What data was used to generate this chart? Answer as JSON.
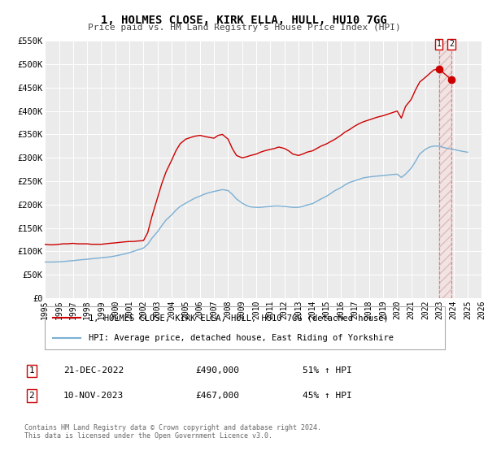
{
  "title": "1, HOLMES CLOSE, KIRK ELLA, HULL, HU10 7GG",
  "subtitle": "Price paid vs. HM Land Registry's House Price Index (HPI)",
  "legend_label1": "1, HOLMES CLOSE, KIRK ELLA, HULL, HU10 7GG (detached house)",
  "legend_label2": "HPI: Average price, detached house, East Riding of Yorkshire",
  "red_color": "#cc0000",
  "blue_color": "#7bafd4",
  "vline_color": "#e08080",
  "marker1_date": "21-DEC-2022",
  "marker1_price": "£490,000",
  "marker1_hpi": "51% ↑ HPI",
  "marker2_date": "10-NOV-2023",
  "marker2_price": "£467,000",
  "marker2_hpi": "45% ↑ HPI",
  "footer1": "Contains HM Land Registry data © Crown copyright and database right 2024.",
  "footer2": "This data is licensed under the Open Government Licence v3.0.",
  "xmin": 1995,
  "xmax": 2026,
  "ymin": 0,
  "ymax": 550000,
  "yticks": [
    0,
    50000,
    100000,
    150000,
    200000,
    250000,
    300000,
    350000,
    400000,
    450000,
    500000,
    550000
  ],
  "ytick_labels": [
    "£0",
    "£50K",
    "£100K",
    "£150K",
    "£200K",
    "£250K",
    "£300K",
    "£350K",
    "£400K",
    "£450K",
    "£500K",
    "£550K"
  ],
  "xticks": [
    1995,
    1996,
    1997,
    1998,
    1999,
    2000,
    2001,
    2002,
    2003,
    2004,
    2005,
    2006,
    2007,
    2008,
    2009,
    2010,
    2011,
    2012,
    2013,
    2014,
    2015,
    2016,
    2017,
    2018,
    2019,
    2020,
    2021,
    2022,
    2023,
    2024,
    2025,
    2026
  ],
  "vline1_x": 2022.97,
  "vline2_x": 2023.86,
  "marker1_x": 2022.97,
  "marker1_y": 490000,
  "marker2_x": 2023.86,
  "marker2_y": 467000,
  "red_x": [
    1995.0,
    1995.3,
    1995.6,
    1996.0,
    1996.3,
    1996.6,
    1997.0,
    1997.3,
    1997.6,
    1998.0,
    1998.3,
    1998.6,
    1999.0,
    1999.3,
    1999.6,
    2000.0,
    2000.3,
    2000.6,
    2001.0,
    2001.3,
    2001.6,
    2002.0,
    2002.3,
    2002.6,
    2003.0,
    2003.3,
    2003.6,
    2004.0,
    2004.3,
    2004.6,
    2005.0,
    2005.3,
    2005.6,
    2006.0,
    2006.3,
    2006.6,
    2007.0,
    2007.3,
    2007.6,
    2008.0,
    2008.3,
    2008.6,
    2009.0,
    2009.3,
    2009.6,
    2010.0,
    2010.3,
    2010.6,
    2011.0,
    2011.3,
    2011.6,
    2012.0,
    2012.3,
    2012.6,
    2013.0,
    2013.3,
    2013.6,
    2014.0,
    2014.3,
    2014.6,
    2015.0,
    2015.3,
    2015.6,
    2016.0,
    2016.3,
    2016.6,
    2017.0,
    2017.3,
    2017.6,
    2018.0,
    2018.3,
    2018.6,
    2019.0,
    2019.3,
    2019.6,
    2020.0,
    2020.3,
    2020.6,
    2021.0,
    2021.3,
    2021.6,
    2022.0,
    2022.3,
    2022.6,
    2022.97,
    2023.86
  ],
  "red_y": [
    115000,
    114000,
    114000,
    115000,
    116000,
    116000,
    117000,
    116000,
    116000,
    116000,
    115000,
    115000,
    115000,
    116000,
    117000,
    118000,
    119000,
    120000,
    121000,
    121000,
    122000,
    123000,
    140000,
    175000,
    215000,
    245000,
    270000,
    295000,
    315000,
    330000,
    340000,
    343000,
    346000,
    348000,
    346000,
    344000,
    342000,
    348000,
    350000,
    340000,
    320000,
    305000,
    300000,
    302000,
    305000,
    308000,
    312000,
    315000,
    318000,
    320000,
    323000,
    320000,
    315000,
    308000,
    305000,
    308000,
    312000,
    315000,
    320000,
    325000,
    330000,
    335000,
    340000,
    348000,
    355000,
    360000,
    368000,
    373000,
    377000,
    381000,
    384000,
    387000,
    390000,
    393000,
    396000,
    400000,
    385000,
    410000,
    425000,
    445000,
    462000,
    472000,
    480000,
    488000,
    490000,
    467000
  ],
  "blue_x": [
    1995.0,
    1995.3,
    1995.6,
    1996.0,
    1996.3,
    1996.6,
    1997.0,
    1997.3,
    1997.6,
    1998.0,
    1998.3,
    1998.6,
    1999.0,
    1999.3,
    1999.6,
    2000.0,
    2000.3,
    2000.6,
    2001.0,
    2001.3,
    2001.6,
    2002.0,
    2002.3,
    2002.6,
    2003.0,
    2003.3,
    2003.6,
    2004.0,
    2004.3,
    2004.6,
    2005.0,
    2005.3,
    2005.6,
    2006.0,
    2006.3,
    2006.6,
    2007.0,
    2007.3,
    2007.6,
    2008.0,
    2008.3,
    2008.6,
    2009.0,
    2009.3,
    2009.6,
    2010.0,
    2010.3,
    2010.6,
    2011.0,
    2011.3,
    2011.6,
    2012.0,
    2012.3,
    2012.6,
    2013.0,
    2013.3,
    2013.6,
    2014.0,
    2014.3,
    2014.6,
    2015.0,
    2015.3,
    2015.6,
    2016.0,
    2016.3,
    2016.6,
    2017.0,
    2017.3,
    2017.6,
    2018.0,
    2018.3,
    2018.6,
    2019.0,
    2019.3,
    2019.6,
    2020.0,
    2020.3,
    2020.6,
    2021.0,
    2021.3,
    2021.6,
    2022.0,
    2022.3,
    2022.6,
    2023.0,
    2023.3,
    2023.6,
    2024.0,
    2024.3,
    2024.6,
    2025.0
  ],
  "blue_y": [
    77000,
    77000,
    77000,
    77500,
    78000,
    79000,
    80000,
    81000,
    82000,
    83000,
    84000,
    85000,
    86000,
    87000,
    88000,
    90000,
    92000,
    94000,
    97000,
    100000,
    103000,
    107000,
    115000,
    128000,
    142000,
    155000,
    167000,
    178000,
    188000,
    196000,
    203000,
    208000,
    213000,
    218000,
    222000,
    225000,
    228000,
    230000,
    232000,
    230000,
    222000,
    212000,
    203000,
    198000,
    195000,
    194000,
    194000,
    195000,
    196000,
    197000,
    197000,
    196000,
    195000,
    194000,
    194000,
    196000,
    199000,
    202000,
    207000,
    212000,
    218000,
    224000,
    230000,
    236000,
    242000,
    247000,
    251000,
    254000,
    257000,
    259000,
    260000,
    261000,
    262000,
    263000,
    264000,
    265000,
    258000,
    265000,
    278000,
    292000,
    308000,
    318000,
    323000,
    325000,
    325000,
    322000,
    320000,
    318000,
    316000,
    314000,
    312000
  ]
}
